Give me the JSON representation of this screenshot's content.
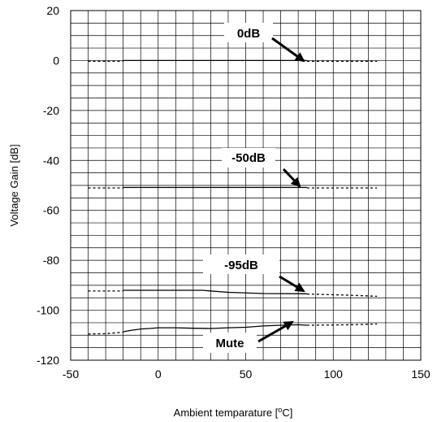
{
  "chart_data": {
    "type": "line",
    "xlabel": "Ambient temparature [",
    "xlabel_sup": "o",
    "xlabel_tail": "C]",
    "ylabel": "Voltage Gain  [dB]",
    "xlim": [
      -50,
      150
    ],
    "ylim": [
      -120,
      20
    ],
    "x_ticks": [
      -50,
      0,
      50,
      100,
      150
    ],
    "y_ticks": [
      20,
      0,
      -20,
      -40,
      -60,
      -80,
      -100,
      -120
    ],
    "grid": true,
    "series": [
      {
        "name": "0dB",
        "solid": {
          "x": [
            -20,
            85
          ],
          "y": [
            0,
            0
          ]
        },
        "dashed": [
          {
            "x": [
              -40,
              -20
            ],
            "y": [
              -0.3,
              -0.3
            ]
          },
          {
            "x": [
              85,
              125
            ],
            "y": [
              -0.3,
              -0.3
            ]
          }
        ]
      },
      {
        "name": "-50dB",
        "solid": {
          "x": [
            -20,
            85
          ],
          "y": [
            -50.8,
            -50.8
          ]
        },
        "dashed": [
          {
            "x": [
              -40,
              -20
            ],
            "y": [
              -51,
              -51
            ]
          },
          {
            "x": [
              85,
              125
            ],
            "y": [
              -51,
              -51
            ]
          }
        ]
      },
      {
        "name": "-95dB",
        "solid": {
          "x": [
            -20,
            25,
            40,
            60,
            85
          ],
          "y": [
            -92,
            -92,
            -92.8,
            -93.3,
            -93.4
          ]
        },
        "dashed": [
          {
            "x": [
              -40,
              -20
            ],
            "y": [
              -92.3,
              -92.3
            ]
          },
          {
            "x": [
              85,
              110,
              125
            ],
            "y": [
              -93.5,
              -94,
              -94.4
            ]
          }
        ]
      },
      {
        "name": "Mute",
        "solid": {
          "x": [
            -20,
            -15,
            -10,
            -5,
            0,
            10,
            20,
            30,
            40,
            50,
            60,
            70,
            80,
            85
          ],
          "y": [
            -108.6,
            -108.0,
            -107.5,
            -107.3,
            -107.0,
            -107.0,
            -107.2,
            -107.3,
            -107.0,
            -106.8,
            -106.3,
            -106.0,
            -105.8,
            -106.0
          ]
        },
        "dashed": [
          {
            "x": [
              -40,
              -30,
              -20
            ],
            "y": [
              -109.5,
              -109.4,
              -108.8
            ]
          },
          {
            "x": [
              85,
              110,
              125
            ],
            "y": [
              -106.0,
              -105.8,
              -105.5
            ]
          }
        ]
      }
    ],
    "annotations": [
      {
        "text": "0dB"
      },
      {
        "text": "-50dB"
      },
      {
        "text": "-95dB"
      },
      {
        "text": "Mute"
      }
    ]
  }
}
